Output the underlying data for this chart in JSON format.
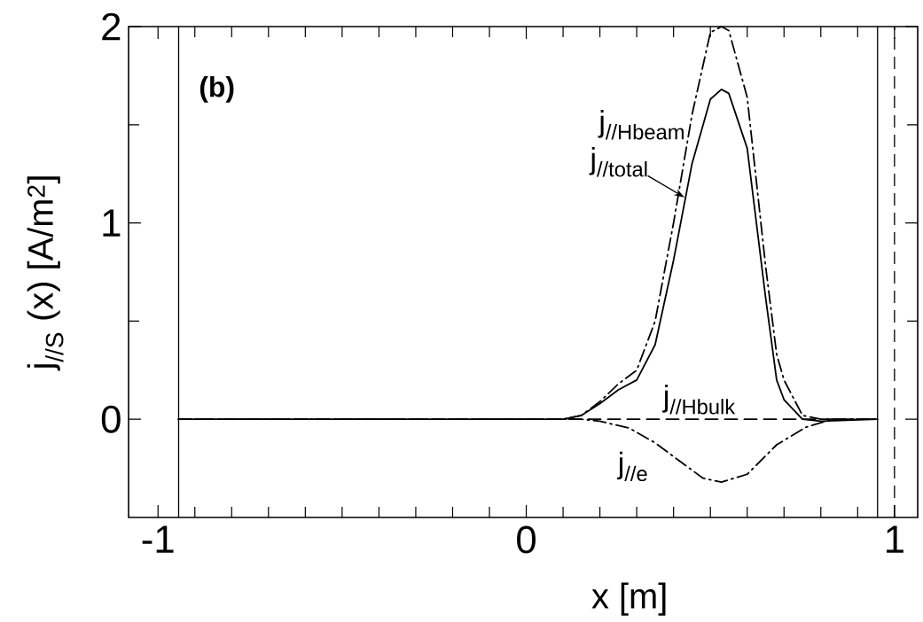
{
  "chart_data": {
    "type": "line",
    "xlabel": "x [m]",
    "ylabel": "j$_{//S}$ (x) [A/m$^{2}$]",
    "annotations": [
      "(b)"
    ],
    "xlim": [
      -1.08,
      1.063
    ],
    "ylim": [
      -0.5,
      2
    ],
    "xticks": [
      -1,
      {
        "value": -0.9,
        "label": null
      },
      {
        "value": -0.8,
        "label": null
      },
      {
        "value": -0.7,
        "label": null
      },
      {
        "value": -0.6,
        "label": null
      },
      {
        "value": -0.5,
        "label": null
      },
      {
        "value": -0.4,
        "label": null
      },
      {
        "value": -0.3,
        "label": null
      },
      {
        "value": -0.2,
        "label": null
      },
      {
        "value": -0.1,
        "label": null
      },
      0,
      {
        "value": 0.1,
        "label": null
      },
      {
        "value": 0.2,
        "label": null
      },
      {
        "value": 0.3,
        "label": null
      },
      {
        "value": 0.4,
        "label": null
      },
      {
        "value": 0.5,
        "label": null
      },
      {
        "value": 0.6,
        "label": null
      },
      {
        "value": 0.7,
        "label": null
      },
      {
        "value": 0.8,
        "label": null
      },
      {
        "value": 0.9,
        "label": null
      },
      1
    ],
    "yticks": [
      0,
      {
        "value": 0.5,
        "label": null
      },
      1,
      {
        "value": 1.5,
        "label": null
      },
      2
    ],
    "grid": false,
    "marker": "none",
    "ref_lines": [
      {
        "axis": "x",
        "value": -0.944,
        "line_style": "solid"
      },
      {
        "axis": "x",
        "value": 0.954,
        "line_style": "solid"
      },
      {
        "axis": "x",
        "value": 1.0,
        "line_style": "dashed"
      }
    ],
    "series": [
      {
        "name": "j$_{//Hbeam}$",
        "color": "#000000",
        "line_style": "dashdot",
        "x": [
          -0.944,
          0.1,
          0.15,
          0.2,
          0.25,
          0.3,
          0.35,
          0.4,
          0.45,
          0.5,
          0.53,
          0.55,
          0.6,
          0.65,
          0.68,
          0.7,
          0.75,
          0.8,
          0.954
        ],
        "values": [
          0,
          0,
          0.02,
          0.09,
          0.18,
          0.25,
          0.5,
          1.0,
          1.55,
          1.97,
          2.0,
          1.98,
          1.64,
          0.78,
          0.33,
          0.2,
          0.02,
          0,
          0
        ]
      },
      {
        "name": "j$_{//total}$",
        "color": "#000000",
        "line_style": "solid",
        "x": [
          -0.944,
          0.1,
          0.15,
          0.2,
          0.25,
          0.3,
          0.35,
          0.4,
          0.45,
          0.5,
          0.53,
          0.55,
          0.6,
          0.65,
          0.68,
          0.7,
          0.75,
          0.8,
          0.954
        ],
        "values": [
          0,
          0,
          0.02,
          0.08,
          0.15,
          0.2,
          0.38,
          0.81,
          1.3,
          1.63,
          1.68,
          1.66,
          1.38,
          0.62,
          0.2,
          0.1,
          0.0,
          -0.01,
          0
        ]
      },
      {
        "name": "j$_{//Hbulk}$",
        "color": "#000000",
        "line_style": "dashed",
        "x": [
          -0.944,
          0.954
        ],
        "values": [
          0,
          0
        ]
      },
      {
        "name": "j$_{//e}$",
        "color": "#000000",
        "line_style": "dashdot",
        "x": [
          -0.944,
          0.15,
          0.2,
          0.28,
          0.35,
          0.4,
          0.48,
          0.53,
          0.6,
          0.68,
          0.76,
          0.83,
          0.954
        ],
        "values": [
          0,
          0,
          -0.01,
          -0.045,
          -0.12,
          -0.19,
          -0.3,
          -0.32,
          -0.28,
          -0.13,
          -0.04,
          0,
          0
        ]
      }
    ]
  }
}
